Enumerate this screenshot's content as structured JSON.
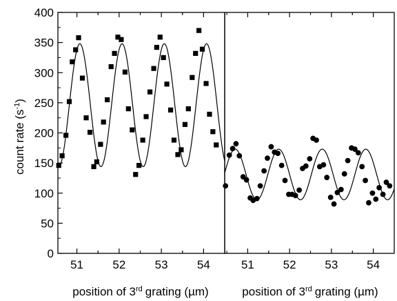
{
  "chart_data": [
    {
      "type": "scatter",
      "xlabel": {
        "pre": "position of 3",
        "sup": "rd",
        "post": "grating (µm)"
      },
      "ylabel": {
        "pre": "count rate (s",
        "sup": "-1",
        "post": ")"
      },
      "xlim": [
        50.55,
        54.5
      ],
      "ylim": [
        0,
        400
      ],
      "x_ticks": [
        51,
        52,
        53,
        54
      ],
      "y_ticks": [
        0,
        50,
        100,
        150,
        200,
        250,
        300,
        350,
        400
      ],
      "marker": "square",
      "points": [
        [
          50.57,
          146
        ],
        [
          50.65,
          162
        ],
        [
          50.74,
          196
        ],
        [
          50.82,
          252
        ],
        [
          50.89,
          318
        ],
        [
          50.97,
          338
        ],
        [
          51.04,
          358
        ],
        [
          51.13,
          291
        ],
        [
          51.22,
          225
        ],
        [
          51.31,
          201
        ],
        [
          51.4,
          144
        ],
        [
          51.47,
          152
        ],
        [
          51.56,
          181
        ],
        [
          51.63,
          218
        ],
        [
          51.72,
          255
        ],
        [
          51.81,
          310
        ],
        [
          51.89,
          332
        ],
        [
          51.97,
          359
        ],
        [
          52.05,
          355
        ],
        [
          52.14,
          301
        ],
        [
          52.22,
          240
        ],
        [
          52.31,
          205
        ],
        [
          52.39,
          131
        ],
        [
          52.47,
          146
        ],
        [
          52.56,
          188
        ],
        [
          52.64,
          227
        ],
        [
          52.73,
          268
        ],
        [
          52.82,
          307
        ],
        [
          52.89,
          342
        ],
        [
          52.97,
          359
        ],
        [
          53.05,
          325
        ],
        [
          53.13,
          281
        ],
        [
          53.22,
          238
        ],
        [
          53.3,
          188
        ],
        [
          53.39,
          164
        ],
        [
          53.47,
          172
        ],
        [
          53.56,
          214
        ],
        [
          53.64,
          240
        ],
        [
          53.73,
          292
        ],
        [
          53.81,
          332
        ],
        [
          53.89,
          370
        ],
        [
          53.97,
          339
        ],
        [
          54.06,
          282
        ],
        [
          54.14,
          231
        ],
        [
          54.22,
          202
        ],
        [
          54.3,
          180
        ]
      ],
      "fit": {
        "mean": 246,
        "amplitude": 102,
        "period": 1.0,
        "peak_at": 51.07
      }
    },
    {
      "type": "scatter",
      "xlabel": {
        "pre": "position of 3",
        "sup": "rd",
        "post": "grating (µm)"
      },
      "xlim": [
        50.45,
        54.5
      ],
      "ylim": [
        0,
        400
      ],
      "x_ticks": [
        51,
        52,
        53,
        54
      ],
      "marker": "circle",
      "points": [
        [
          50.47,
          112
        ],
        [
          50.56,
          163
        ],
        [
          50.64,
          174
        ],
        [
          50.72,
          182
        ],
        [
          50.8,
          162
        ],
        [
          50.89,
          127
        ],
        [
          50.97,
          122
        ],
        [
          51.06,
          92
        ],
        [
          51.13,
          88
        ],
        [
          51.22,
          91
        ],
        [
          51.3,
          112
        ],
        [
          51.39,
          137
        ],
        [
          51.47,
          158
        ],
        [
          51.56,
          177
        ],
        [
          51.64,
          168
        ],
        [
          51.72,
          166
        ],
        [
          51.81,
          146
        ],
        [
          51.89,
          121
        ],
        [
          51.98,
          98
        ],
        [
          52.06,
          98
        ],
        [
          52.14,
          96
        ],
        [
          52.23,
          105
        ],
        [
          52.31,
          141
        ],
        [
          52.39,
          145
        ],
        [
          52.48,
          157
        ],
        [
          52.56,
          191
        ],
        [
          52.64,
          188
        ],
        [
          52.72,
          144
        ],
        [
          52.81,
          147
        ],
        [
          52.89,
          126
        ],
        [
          52.98,
          93
        ],
        [
          53.06,
          82
        ],
        [
          53.14,
          101
        ],
        [
          53.23,
          106
        ],
        [
          53.31,
          132
        ],
        [
          53.39,
          154
        ],
        [
          53.48,
          175
        ],
        [
          53.56,
          173
        ],
        [
          53.64,
          167
        ],
        [
          53.73,
          144
        ],
        [
          53.81,
          121
        ],
        [
          53.89,
          84
        ],
        [
          53.98,
          100
        ],
        [
          54.06,
          90
        ],
        [
          54.14,
          109
        ],
        [
          54.23,
          98
        ],
        [
          54.31,
          118
        ],
        [
          54.39,
          112
        ]
      ],
      "fit": {
        "mean": 131,
        "amplitude": 42,
        "period": 1.04,
        "peak_at": 50.7
      }
    }
  ]
}
